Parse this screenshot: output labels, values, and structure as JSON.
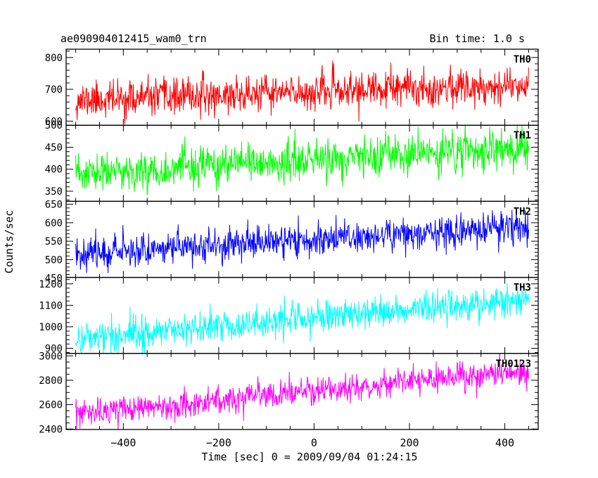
{
  "header": {
    "left_title": "ae090904012415_wam0_trn",
    "right_title": "Bin time: 1.0 s"
  },
  "chart_data": {
    "type": "line",
    "title": "ae090904012415_wam0_trn",
    "bin_time_label": "Bin time: 1.0 s",
    "xlabel": "Time [sec] 0 = 2009/09/04 01:24:15",
    "ylabel": "Counts/sec",
    "xlim": [
      -520,
      470
    ],
    "x_data_range": [
      -500,
      450
    ],
    "x_ticks": [
      -400,
      -200,
      0,
      200,
      400
    ],
    "x_tick_labels": [
      "−400",
      "−200",
      "0",
      "200",
      "400"
    ],
    "x_minor_step": 50,
    "grid": false,
    "panels": [
      {
        "name": "TH0",
        "color": "#ff0000",
        "ylim": [
          587,
          826
        ],
        "y_ticks": [
          600,
          700,
          800
        ],
        "y_tick_labels": [
          "600",
          "700",
          "800"
        ],
        "y_minor_step": 20,
        "trend_start": 665,
        "trend_end": 715,
        "noise": 28,
        "seed": 11
      },
      {
        "name": "TH1",
        "color": "#00ff00",
        "ylim": [
          327,
          500
        ],
        "y_ticks": [
          350,
          400,
          450,
          500
        ],
        "y_tick_labels": [
          "350",
          "400",
          "450",
          "500"
        ],
        "y_minor_step": 10,
        "trend_start": 388,
        "trend_end": 448,
        "noise": 22,
        "seed": 23
      },
      {
        "name": "TH2",
        "color": "#0000ff",
        "ylim": [
          452,
          658
        ],
        "y_ticks": [
          450,
          500,
          550,
          600,
          650
        ],
        "y_tick_labels": [
          "450",
          "500",
          "550",
          "600",
          "650"
        ],
        "y_minor_step": 10,
        "trend_start": 518,
        "trend_end": 588,
        "noise": 22,
        "seed": 37
      },
      {
        "name": "TH3",
        "color": "#00ffff",
        "ylim": [
          876,
          1230
        ],
        "y_ticks": [
          900,
          1000,
          1100,
          1200
        ],
        "y_tick_labels": [
          "900",
          "1000",
          "1100",
          "1200"
        ],
        "y_minor_step": 20,
        "trend_start": 945,
        "trend_end": 1130,
        "noise": 38,
        "seed": 41
      },
      {
        "name": "TH0123",
        "color": "#ff00ff",
        "ylim": [
          2396,
          3020
        ],
        "y_ticks": [
          2400,
          2600,
          2800,
          3000
        ],
        "y_tick_labels": [
          "2400",
          "2600",
          "2800",
          "3000"
        ],
        "y_minor_step": 50,
        "trend_start": 2520,
        "trend_end": 2880,
        "noise": 55,
        "seed": 53
      }
    ]
  }
}
